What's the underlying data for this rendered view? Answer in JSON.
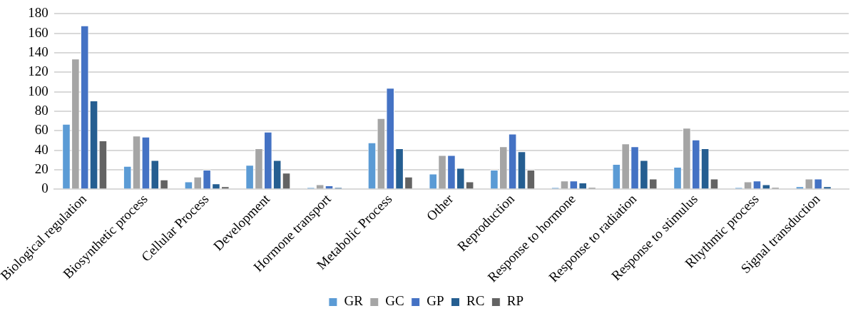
{
  "chart_data": {
    "type": "bar",
    "categories": [
      "Biological regulation",
      "Biosynthetic process",
      "Cellular Process",
      "Development",
      "Hormone transport",
      "Metabolic Process",
      "Other",
      "Reproduction",
      "Response to hormone",
      "Response to radiation",
      "Response to stimulus",
      "Rhythmic process",
      "Signal transduction"
    ],
    "series": [
      {
        "name": "GR",
        "color": "#5b9bd5",
        "values": [
          67,
          24,
          8,
          25,
          2,
          48,
          16,
          20,
          2,
          26,
          23,
          2,
          3
        ]
      },
      {
        "name": "GC",
        "color": "#a5a5a5",
        "values": [
          134,
          55,
          13,
          42,
          5,
          73,
          35,
          44,
          9,
          47,
          63,
          8,
          11
        ]
      },
      {
        "name": "GP",
        "color": "#4472c4",
        "values": [
          168,
          54,
          20,
          59,
          4,
          104,
          35,
          57,
          9,
          44,
          51,
          9,
          11
        ]
      },
      {
        "name": "RC",
        "color": "#255e91",
        "values": [
          91,
          30,
          6,
          30,
          2,
          42,
          22,
          39,
          7,
          30,
          42,
          5,
          3
        ]
      },
      {
        "name": "RP",
        "color": "#636363",
        "values": [
          50,
          10,
          3,
          17,
          0,
          13,
          8,
          20,
          2,
          11,
          11,
          2,
          0
        ]
      }
    ],
    "ylim": [
      0,
      180
    ],
    "yticks": [
      0,
      20,
      40,
      60,
      80,
      100,
      120,
      140,
      160,
      180
    ],
    "grid": "y",
    "legend": "bottom"
  }
}
